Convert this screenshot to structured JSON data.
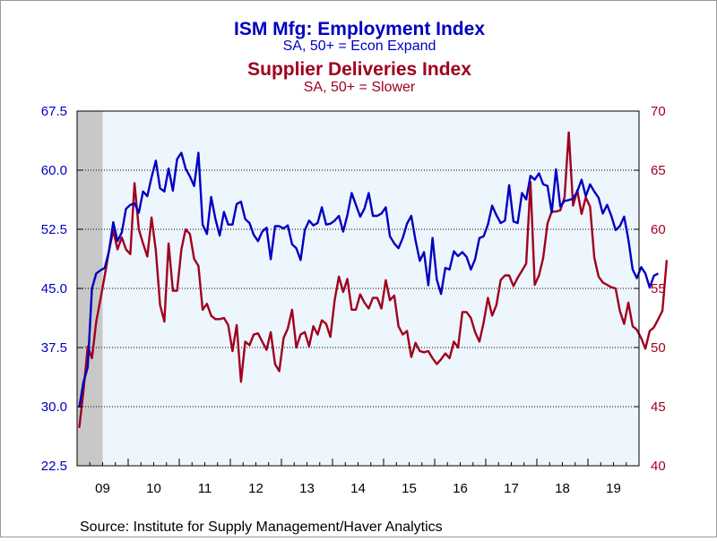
{
  "colors": {
    "employment": "#0000c0",
    "deliveries": "#a0001e",
    "plot_bg": "#edf5fd",
    "recession": "#c8c8c8",
    "grid": "#000000",
    "frame_bg": "#ffffff"
  },
  "titles": {
    "employment_title": "ISM Mfg: Employment Index",
    "employment_subtitle": "SA, 50+ = Econ Expand",
    "deliveries_title": "Supplier Deliveries Index",
    "deliveries_subtitle": "SA, 50+ = Slower"
  },
  "source": "Source:  Institute for Supply Management/Haver Analytics",
  "chart_data": {
    "type": "line",
    "x_unit": "month",
    "x_range": [
      "2009-01",
      "2019-12"
    ],
    "shaded_period": [
      "2009-01",
      "2009-06"
    ],
    "left_axis": {
      "ylim": [
        22.5,
        67.5
      ],
      "ticks": [
        "67.5",
        "60.0",
        "52.5",
        "45.0",
        "37.5",
        "30.0",
        "22.5"
      ],
      "color": "#0000c0"
    },
    "right_axis": {
      "ylim": [
        40,
        70
      ],
      "ticks": [
        "70",
        "65",
        "60",
        "55",
        "50",
        "45",
        "40"
      ],
      "color": "#a0001e"
    },
    "x_tick_labels": [
      "09",
      "10",
      "11",
      "12",
      "13",
      "14",
      "15",
      "16",
      "17",
      "18",
      "19"
    ],
    "series": [
      {
        "name": "ISM Mfg: Employment Index",
        "axis": "left",
        "start": "2009-01",
        "values": [
          29.9,
          33.1,
          35.0,
          45.0,
          46.9,
          47.3,
          47.6,
          49.7,
          53.4,
          51.0,
          52.1,
          55.1,
          55.6,
          55.8,
          54.6,
          57.3,
          56.7,
          59.1,
          61.2,
          57.7,
          57.3,
          60.2,
          57.4,
          61.4,
          62.2,
          60.2,
          59.2,
          58.0,
          62.2,
          53.1,
          51.9,
          56.6,
          53.8,
          51.7,
          54.7,
          53.1,
          53.1,
          55.7,
          56.0,
          53.8,
          53.3,
          51.8,
          51.0,
          52.2,
          52.7,
          48.7,
          52.9,
          52.9,
          52.6,
          53.0,
          50.6,
          50.1,
          48.6,
          52.4,
          53.6,
          53.0,
          53.3,
          55.3,
          53.1,
          53.2,
          53.6,
          54.2,
          52.2,
          54.3,
          57.1,
          55.6,
          54.1,
          55.1,
          57.1,
          54.2,
          54.2,
          54.5,
          55.3,
          51.6,
          50.7,
          50.1,
          51.4,
          53.2,
          54.2,
          51.1,
          48.5,
          49.6,
          45.4,
          51.4,
          46.1,
          44.3,
          47.6,
          47.4,
          49.7,
          49.1,
          49.6,
          49.0,
          47.4,
          48.7,
          51.4,
          51.6,
          53.1,
          55.5,
          54.3,
          53.3,
          53.6,
          58.1,
          53.5,
          53.3,
          57.1,
          56.3,
          59.3,
          58.8,
          59.6,
          58.2,
          58.0,
          54.6,
          60.1,
          55.4,
          56.1,
          56.2,
          56.4,
          57.3,
          58.8,
          56.7,
          58.2,
          57.3,
          56.5,
          54.5,
          55.6,
          54.2,
          52.4,
          52.9,
          54.1,
          51.2,
          47.4,
          46.3,
          47.7,
          46.9,
          45.1,
          46.6,
          46.9
        ]
      },
      {
        "name": "Supplier Deliveries Index",
        "axis": "right",
        "start": "2009-01",
        "values": [
          43.2,
          46.3,
          50.1,
          49.1,
          52.2,
          54.1,
          56.1,
          58.2,
          59.9,
          58.3,
          59.3,
          58.3,
          57.9,
          63.9,
          60.0,
          58.8,
          57.7,
          61.0,
          58.2,
          53.6,
          52.2,
          58.8,
          54.8,
          54.8,
          58.3,
          60.0,
          59.6,
          57.5,
          56.9,
          53.2,
          53.7,
          52.7,
          52.4,
          52.4,
          52.5,
          51.9,
          49.7,
          51.9,
          47.1,
          50.5,
          50.2,
          51.1,
          51.2,
          50.5,
          49.8,
          51.3,
          48.6,
          48.0,
          50.8,
          51.6,
          53.2,
          50.0,
          51.1,
          51.3,
          50.1,
          51.8,
          51.1,
          52.3,
          52.0,
          50.9,
          54.0,
          56.0,
          54.7,
          55.8,
          53.2,
          53.2,
          54.5,
          53.8,
          53.3,
          54.2,
          54.2,
          53.3,
          55.7,
          54.0,
          54.4,
          51.8,
          51.1,
          51.4,
          49.2,
          50.4,
          49.7,
          49.6,
          49.7,
          49.1,
          48.6,
          49.0,
          49.5,
          49.1,
          50.5,
          50.0,
          53.0,
          53.0,
          52.5,
          51.3,
          50.5,
          52.1,
          54.2,
          52.7,
          53.6,
          55.7,
          56.1,
          56.1,
          55.2,
          55.9,
          56.5,
          57.1,
          64.0,
          55.3,
          56.1,
          57.6,
          60.5,
          61.5,
          61.5,
          61.6,
          62.7,
          68.2,
          62.0,
          63.3,
          61.3,
          62.7,
          61.9,
          57.6,
          56.0,
          55.5,
          55.3,
          55.1,
          55.0,
          53.1,
          52.0,
          53.8,
          51.8,
          51.5,
          50.8,
          49.9,
          51.4,
          51.7,
          52.4,
          53.1,
          57.4
        ]
      }
    ]
  }
}
